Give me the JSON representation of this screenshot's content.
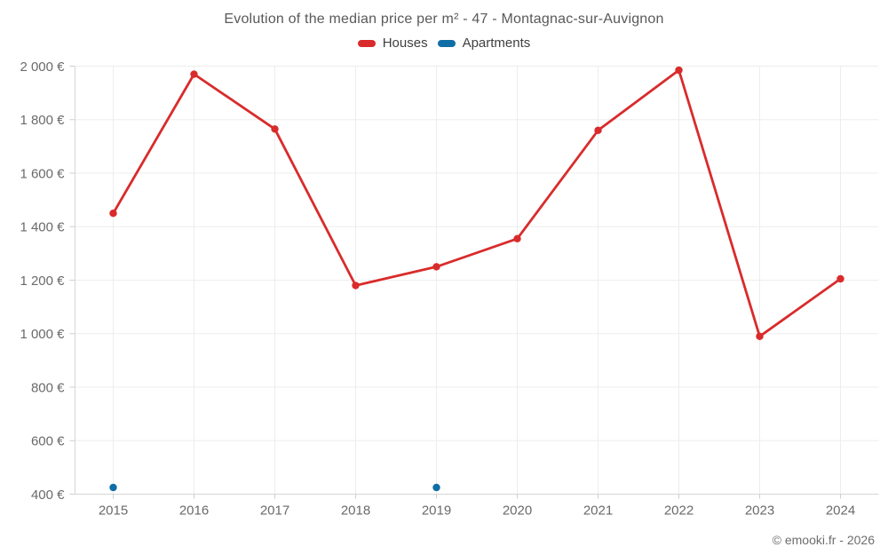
{
  "title": "Evolution of the median price per m² - 47 - Montagnac-sur-Auvignon",
  "legend": [
    {
      "label": "Houses",
      "color": "#d92b2b"
    },
    {
      "label": "Apartments",
      "color": "#0f6ea6"
    }
  ],
  "footer": "© emooki.fr - 2026",
  "colors": {
    "grid": "#ededed",
    "axis": "#d6d6d6",
    "tick": "#cfcfcf",
    "houses": "#d92b2b",
    "apartments": "#0f6ea6"
  },
  "chart_data": {
    "type": "line",
    "title": "Evolution of the median price per m² - 47 - Montagnac-sur-Auvignon",
    "x": [
      2015,
      2016,
      2017,
      2018,
      2019,
      2020,
      2021,
      2022,
      2023,
      2024
    ],
    "series": [
      {
        "name": "Houses",
        "color": "#d92b2b",
        "values": [
          1450,
          1970,
          1765,
          1180,
          1250,
          1355,
          1760,
          1985,
          990,
          1205
        ]
      },
      {
        "name": "Apartments",
        "color": "#0f6ea6",
        "values": [
          425,
          null,
          null,
          null,
          425,
          null,
          null,
          null,
          null,
          null
        ]
      }
    ],
    "ylim": [
      400,
      2000
    ],
    "ytick_step": 200,
    "ylabel_suffix": " €",
    "grid": true,
    "legend_position": "top"
  }
}
